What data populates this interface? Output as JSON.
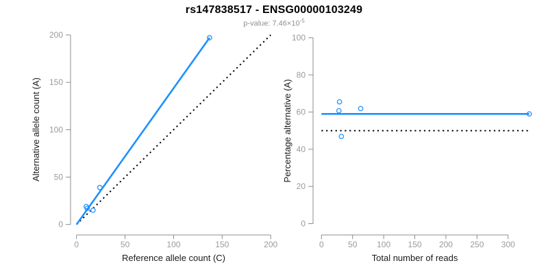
{
  "header": {
    "title": "rs147838517 - ENSG00000103249",
    "subtitle_base": "p-value: 7.46×10",
    "subtitle_exponent": "-5"
  },
  "colors": {
    "accent_blue": "#1E90FF",
    "dotted_black": "#000000",
    "axis_gray": "#8c8c8c",
    "tick_label_gray": "#9a9a9a",
    "subtitle_gray": "#8f8f8f",
    "title_black": "#000000"
  },
  "chart_data": [
    {
      "name": "allele-counts",
      "type": "scatter",
      "title": "",
      "xlabel": "Reference allele count (C)",
      "ylabel": "Alternative allele count (A)",
      "xlim": [
        0,
        200
      ],
      "ylim": [
        0,
        200
      ],
      "xticks": [
        0,
        50,
        100,
        150,
        200
      ],
      "yticks": [
        0,
        50,
        100,
        150,
        200
      ],
      "grid": false,
      "legend": "none",
      "marker": "open-circle",
      "point_color": "#1E90FF",
      "points": [
        [
          10,
          19
        ],
        [
          11,
          17
        ],
        [
          17,
          15
        ],
        [
          24,
          39
        ],
        [
          137,
          197
        ]
      ],
      "lines": [
        {
          "name": "identity-line",
          "x1": 0,
          "y1": 0,
          "x2": 200,
          "y2": 200,
          "color": "#000000",
          "style": "dotted"
        },
        {
          "name": "fit-line",
          "x1": 0,
          "y1": 0,
          "x2": 137,
          "y2": 197,
          "color": "#1E90FF",
          "style": "solid"
        }
      ]
    },
    {
      "name": "percentage-vs-coverage",
      "type": "scatter",
      "title": "",
      "xlabel": "Total number of reads",
      "ylabel": "Percentage alternative (A)",
      "xlim": [
        0,
        334
      ],
      "ylim": [
        0,
        100
      ],
      "xticks": [
        0,
        50,
        100,
        150,
        200,
        250,
        300
      ],
      "yticks": [
        0,
        20,
        40,
        60,
        80,
        100
      ],
      "grid": false,
      "legend": "none",
      "marker": "open-circle",
      "point_color": "#1E90FF",
      "points": [
        [
          29,
          65.5
        ],
        [
          28,
          60.7
        ],
        [
          63,
          61.9
        ],
        [
          32,
          46.9
        ],
        [
          334,
          59
        ]
      ],
      "lines": [
        {
          "name": "fifty-percent-line",
          "x1": 0,
          "y1": 50,
          "x2": 334,
          "y2": 50,
          "color": "#000000",
          "style": "dotted"
        },
        {
          "name": "mean-percentage-line",
          "x1": 0,
          "y1": 59,
          "x2": 334,
          "y2": 59,
          "color": "#1E90FF",
          "style": "solid"
        }
      ]
    }
  ]
}
